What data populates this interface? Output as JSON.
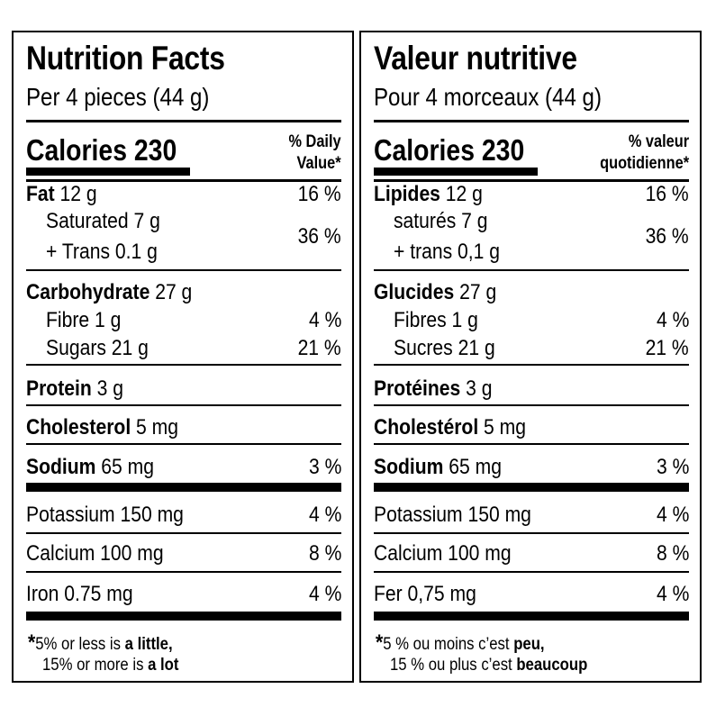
{
  "english": {
    "title": "Nutrition Facts",
    "serving": "Per 4 pieces (44 g)",
    "calories_label": "Calories 230",
    "dv_header_line1": "% Daily",
    "dv_header_line2": "Value",
    "star": "*",
    "fat": {
      "name": "Fat",
      "amount": "12 g",
      "dv": "16 %"
    },
    "saturated": {
      "name": "Saturated 7 g"
    },
    "trans": {
      "name": "+ Trans 0.1 g"
    },
    "sat_trans_dv": "36 %",
    "carbohydrate": {
      "name": "Carbohydrate",
      "amount": "27 g"
    },
    "fibre": {
      "name": "Fibre 1 g",
      "dv": "4 %"
    },
    "sugars": {
      "name": "Sugars 21 g",
      "dv": "21 %"
    },
    "protein": {
      "name": "Protein",
      "amount": "3 g"
    },
    "cholesterol": {
      "name": "Cholesterol",
      "amount": "5 mg"
    },
    "sodium": {
      "name": "Sodium",
      "amount": "65 mg",
      "dv": "3 %"
    },
    "potassium": {
      "name": "Potassium 150 mg",
      "dv": "4 %"
    },
    "calcium": {
      "name": "Calcium 100 mg",
      "dv": "8 %"
    },
    "iron": {
      "name": "Iron 0.75 mg",
      "dv": "4 %"
    },
    "foot1_pre": "5% or less is ",
    "foot1_bold": "a little,",
    "foot2_pre": "15% or more is ",
    "foot2_bold": "a lot"
  },
  "french": {
    "title": "Valeur nutritive",
    "serving": "Pour 4 morceaux (44 g)",
    "calories_label": "Calories 230",
    "dv_header_line1": "% valeur",
    "dv_header_line2": "quotidienne",
    "star": "*",
    "fat": {
      "name": "Lipides",
      "amount": "12 g",
      "dv": "16 %"
    },
    "saturated": {
      "name": "saturés 7 g"
    },
    "trans": {
      "name": "+ trans 0,1 g"
    },
    "sat_trans_dv": "36 %",
    "carbohydrate": {
      "name": "Glucides",
      "amount": "27 g"
    },
    "fibre": {
      "name": "Fibres 1 g",
      "dv": "4 %"
    },
    "sugars": {
      "name": "Sucres 21 g",
      "dv": "21 %"
    },
    "protein": {
      "name": "Protéines",
      "amount": "3 g"
    },
    "cholesterol": {
      "name": "Cholestérol",
      "amount": "5 mg"
    },
    "sodium": {
      "name": "Sodium",
      "amount": "65 mg",
      "dv": "3 %"
    },
    "potassium": {
      "name": "Potassium 150 mg",
      "dv": "4 %"
    },
    "calcium": {
      "name": "Calcium 100 mg",
      "dv": "8 %"
    },
    "iron": {
      "name": "Fer 0,75 mg",
      "dv": "4 %"
    },
    "foot1_pre": "5 % ou moins c’est ",
    "foot1_bold": "peu,",
    "foot2_pre": "15 % ou plus c’est ",
    "foot2_bold": "beaucoup"
  }
}
